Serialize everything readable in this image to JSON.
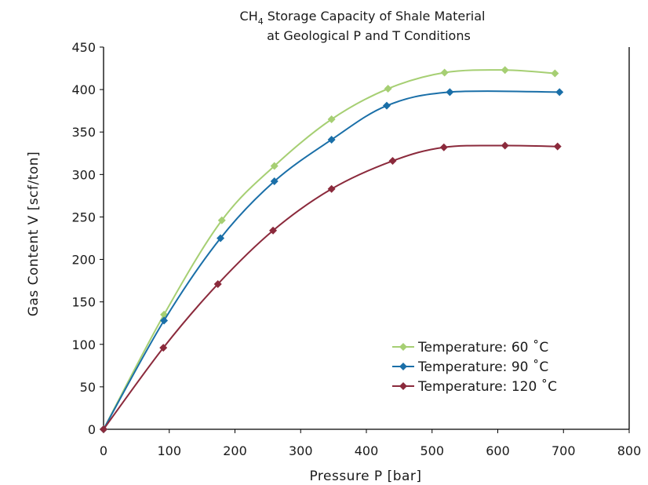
{
  "chart_data": {
    "type": "line",
    "title": {
      "prefix": "CH",
      "subscript": "4",
      "rest": " Storage Capacity of Shale Material",
      "line2": "at Geological P and T Conditions"
    },
    "xlabel": "Pressure P [bar]",
    "ylabel": "Gas Content V [scf/ton]",
    "xlim": [
      0,
      800
    ],
    "ylim": [
      0,
      450
    ],
    "xticks": [
      "0",
      "100",
      "200",
      "300",
      "400",
      "500",
      "600",
      "700",
      "800"
    ],
    "yticks": [
      "0",
      "50",
      "100",
      "150",
      "200",
      "250",
      "300",
      "350",
      "400",
      "450"
    ],
    "grid": false,
    "legend_position": "bottom-right",
    "series": [
      {
        "name": "Temperature: 60 ˚C",
        "color": "#a6cf73",
        "x": [
          0,
          92,
          180,
          260,
          347,
          433,
          519,
          611,
          687
        ],
        "y": [
          0,
          135,
          246,
          310,
          365,
          401,
          420,
          423,
          419
        ]
      },
      {
        "name": "Temperature: 90 ˚C",
        "color": "#1a6fa8",
        "x": [
          0,
          92,
          178,
          260,
          347,
          431,
          527,
          694
        ],
        "y": [
          0,
          128,
          225,
          292,
          341,
          381,
          397,
          397
        ]
      },
      {
        "name": "Temperature: 120 ˚C",
        "color": "#8b2a3c",
        "x": [
          0,
          91,
          174,
          258,
          347,
          440,
          518,
          611,
          691
        ],
        "y": [
          0,
          96,
          171,
          234,
          283,
          316,
          332,
          334,
          333
        ]
      }
    ]
  }
}
